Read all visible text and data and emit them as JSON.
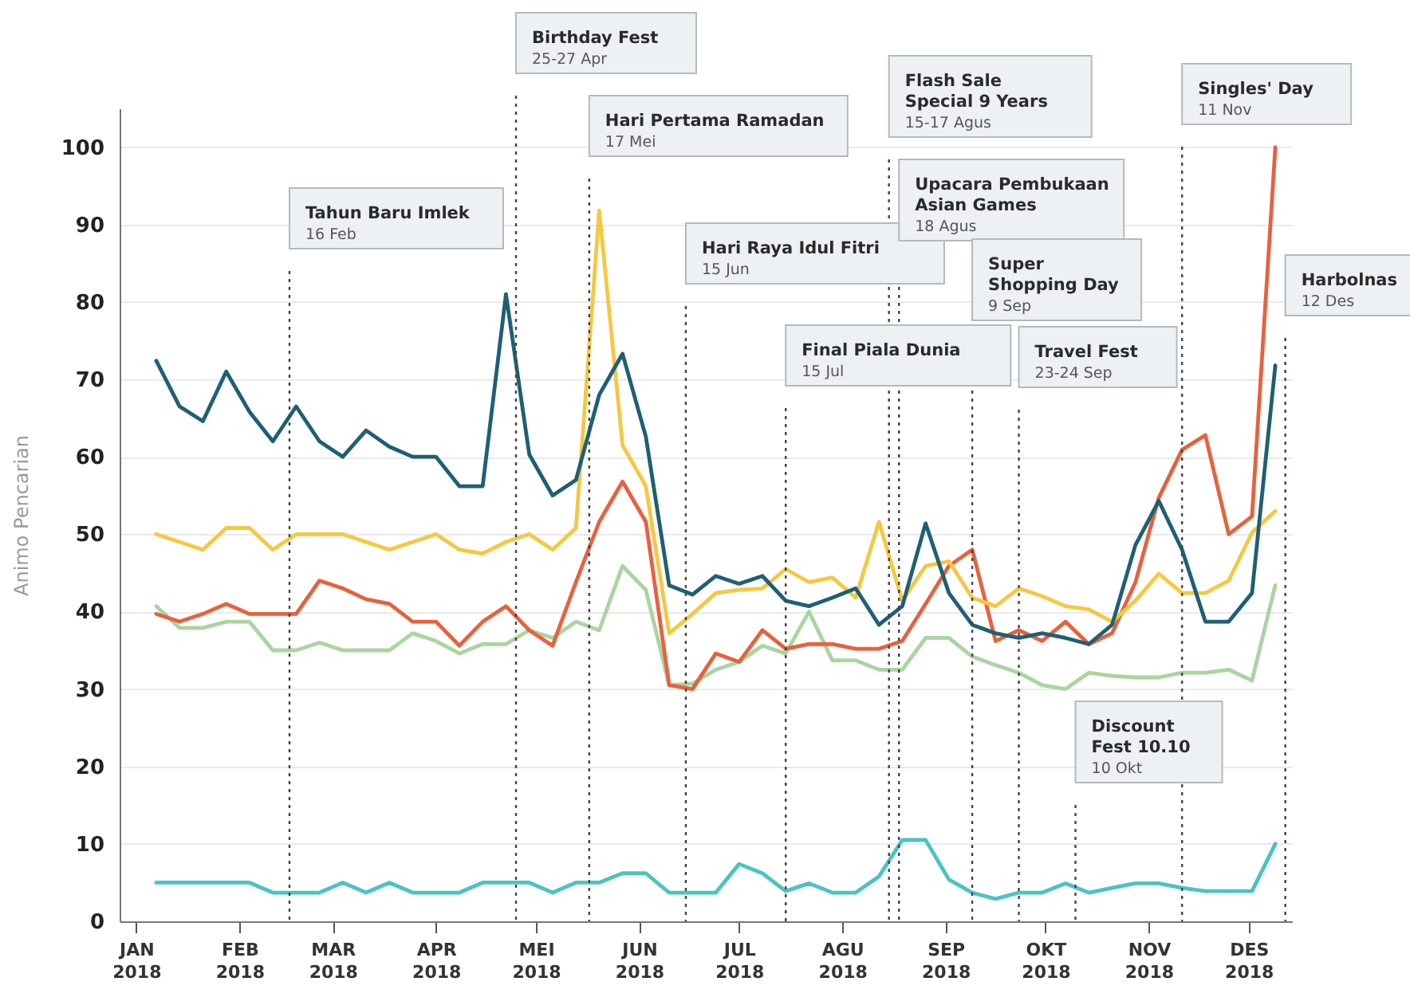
{
  "chart_data": {
    "type": "line",
    "ylabel": "Animo Pencarian",
    "x": [
      "2018-01-07",
      "2018-01-14",
      "2018-01-21",
      "2018-01-28",
      "2018-02-04",
      "2018-02-11",
      "2018-02-18",
      "2018-02-25",
      "2018-03-04",
      "2018-03-11",
      "2018-03-18",
      "2018-03-25",
      "2018-04-01",
      "2018-04-08",
      "2018-04-15",
      "2018-04-22",
      "2018-04-29",
      "2018-05-06",
      "2018-05-13",
      "2018-05-20",
      "2018-05-27",
      "2018-06-03",
      "2018-06-10",
      "2018-06-17",
      "2018-06-24",
      "2018-07-01",
      "2018-07-08",
      "2018-07-15",
      "2018-07-22",
      "2018-07-29",
      "2018-08-05",
      "2018-08-12",
      "2018-08-19",
      "2018-08-26",
      "2018-09-02",
      "2018-09-09",
      "2018-09-16",
      "2018-09-23",
      "2018-09-30",
      "2018-10-07",
      "2018-10-14",
      "2018-10-21",
      "2018-10-28",
      "2018-11-04",
      "2018-11-11",
      "2018-11-18",
      "2018-11-25",
      "2018-12-02",
      "2018-12-09"
    ],
    "series": [
      {
        "color": "#4cc3c0",
        "values": [
          5,
          5,
          5,
          5,
          5,
          3.7,
          3.7,
          3.7,
          5,
          3.7,
          5,
          3.7,
          3.7,
          3.7,
          5,
          5,
          5,
          3.7,
          5,
          5,
          6.2,
          6.2,
          3.7,
          3.7,
          3.7,
          7.4,
          6.2,
          3.9,
          4.9,
          3.7,
          3.7,
          5.8,
          10.5,
          10.5,
          5.4,
          3.7,
          2.9,
          3.7,
          3.7,
          4.9,
          3.7,
          4.3,
          4.9,
          4.9,
          4.3,
          3.9,
          3.9,
          3.9,
          10
        ]
      },
      {
        "color": "#a8d5a0",
        "values": [
          40.7,
          37.9,
          37.9,
          38.7,
          38.7,
          35,
          35,
          36,
          35,
          35,
          35,
          37.2,
          36.2,
          34.6,
          35.8,
          35.8,
          37.6,
          36.6,
          38.7,
          37.6,
          45.9,
          42.8,
          30.5,
          30.7,
          32.5,
          33.5,
          35.6,
          34.6,
          40,
          33.7,
          33.7,
          32.5,
          32.5,
          36.6,
          36.6,
          34.2,
          33.1,
          32.1,
          30.5,
          30,
          32.1,
          31.7,
          31.5,
          31.5,
          32.1,
          32.1,
          32.5,
          31.1,
          43.4
        ]
      },
      {
        "color": "#e8613c",
        "values": [
          39.7,
          38.7,
          39.7,
          41,
          39.7,
          39.7,
          39.7,
          44,
          43,
          41.6,
          41,
          38.7,
          38.7,
          35.6,
          38.7,
          40.7,
          37.6,
          35.6,
          43.8,
          51.6,
          56.8,
          51.6,
          30.5,
          30,
          34.6,
          33.5,
          37.6,
          35.2,
          35.8,
          35.8,
          35.2,
          35.2,
          36.2,
          41,
          45.9,
          48,
          36.2,
          37.6,
          36.2,
          38.7,
          35.8,
          37.2,
          43.8,
          54.7,
          60.9,
          62.8,
          50,
          52.3,
          100
        ]
      },
      {
        "color": "#f5c842",
        "values": [
          50,
          49,
          48,
          50.8,
          50.8,
          48,
          50,
          50,
          50,
          49,
          48,
          49,
          50,
          48,
          47.5,
          49,
          50,
          48,
          50.8,
          91.8,
          61.5,
          56.2,
          37.2,
          39.7,
          42.4,
          42.8,
          43,
          45.5,
          43.8,
          44.4,
          41.8,
          51.6,
          41.4,
          45.9,
          46.5,
          41.8,
          40.7,
          43,
          42,
          40.7,
          40.3,
          38.7,
          41.4,
          44.9,
          42.4,
          42.4,
          44,
          50.2,
          53
        ]
      },
      {
        "color": "#1f5f74",
        "values": [
          72.4,
          66.5,
          64.6,
          71,
          65.8,
          62,
          66.5,
          62,
          60,
          63.4,
          61.3,
          60,
          60,
          56.2,
          56.2,
          81,
          60.3,
          55,
          57,
          68,
          73.3,
          62.6,
          43.4,
          42.2,
          44.6,
          43.6,
          44.6,
          41.4,
          40.7,
          41.8,
          43,
          38.3,
          40.7,
          51.4,
          42.4,
          38.3,
          37.2,
          36.6,
          37.2,
          36.6,
          35.8,
          38.3,
          48.6,
          54.3,
          48,
          38.7,
          38.7,
          42.4,
          71.8
        ]
      }
    ],
    "xlim": [
      "2017-12-27",
      "2018-12-14"
    ],
    "ylim": [
      0,
      105
    ],
    "xticks": [
      {
        "value": "2018-01-01",
        "label": "JAN 2018"
      },
      {
        "value": "2018-02-01",
        "label": "FEB 2018"
      },
      {
        "value": "2018-03-01",
        "label": "MAR 2018"
      },
      {
        "value": "2018-04-01",
        "label": "APR 2018"
      },
      {
        "value": "2018-05-01",
        "label": "MEI 2018"
      },
      {
        "value": "2018-06-01",
        "label": "JUN 2018"
      },
      {
        "value": "2018-07-01",
        "label": "JUL 2018"
      },
      {
        "value": "2018-08-01",
        "label": "AGU 2018"
      },
      {
        "value": "2018-09-01",
        "label": "SEP 2018"
      },
      {
        "value": "2018-10-01",
        "label": "OKT 2018"
      },
      {
        "value": "2018-11-01",
        "label": "NOV 2018"
      },
      {
        "value": "2018-12-01",
        "label": "DES 2018"
      }
    ],
    "yticks": [
      0,
      10,
      20,
      30,
      40,
      50,
      60,
      70,
      80,
      90,
      100
    ],
    "grid": "y",
    "legend": false,
    "line_style": "solid",
    "marker": "none",
    "ref_lines": [
      {
        "axis": "x",
        "value": "2018-02-16",
        "label": "Tahun Baru Imlek\n16 Feb",
        "line_style": "dotted",
        "color": "#444444"
      },
      {
        "axis": "x",
        "value": "2018-04-25",
        "label": "Birthday Fest\n25-27 Apr",
        "line_style": "dotted",
        "color": "#444444"
      },
      {
        "axis": "x",
        "value": "2018-05-17",
        "label": "Hari Pertama Ramadan\n17 Mei",
        "line_style": "dotted",
        "color": "#444444"
      },
      {
        "axis": "x",
        "value": "2018-06-15",
        "label": "Hari Raya Idul Fitri\n15 Jun",
        "line_style": "dotted",
        "color": "#444444"
      },
      {
        "axis": "x",
        "value": "2018-07-15",
        "label": "Final Piala Dunia\n15 Jul",
        "line_style": "dotted",
        "color": "#444444"
      },
      {
        "axis": "x",
        "value": "2018-08-15",
        "label": "Flash Sale\nSpecial 9 Years\n15-17 Agus",
        "line_style": "dotted",
        "color": "#444444"
      },
      {
        "axis": "x",
        "value": "2018-08-18",
        "label": "Upacara Pembukaan\nAsian Games\n18 Agus",
        "line_style": "dotted",
        "color": "#444444"
      },
      {
        "axis": "x",
        "value": "2018-09-09",
        "label": "Super\nShopping Day\n9 Sep",
        "line_style": "dotted",
        "color": "#444444"
      },
      {
        "axis": "x",
        "value": "2018-09-23",
        "label": "Travel Fest\n23-24 Sep",
        "line_style": "dotted",
        "color": "#444444"
      },
      {
        "axis": "x",
        "value": "2018-10-10",
        "label": "Discount\nFest 10.10\n10 Okt",
        "line_style": "dotted",
        "color": "#444444"
      },
      {
        "axis": "x",
        "value": "2018-11-11",
        "label": "Singles' Day\n11 Nov",
        "line_style": "dotted",
        "color": "#444444"
      },
      {
        "axis": "x",
        "value": "2018-12-12",
        "label": "Harbolnas\n12 Des",
        "line_style": "dotted",
        "color": "#444444"
      }
    ]
  }
}
